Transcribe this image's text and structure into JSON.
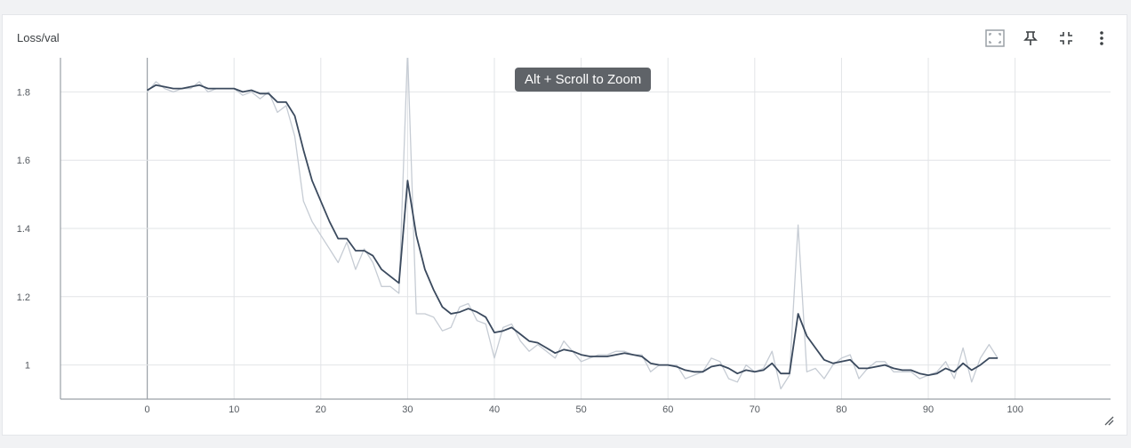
{
  "card": {
    "title": "Loss/val"
  },
  "tooltip": {
    "text": "Alt + Scroll to Zoom"
  },
  "toolbar": {
    "buttons": [
      {
        "name": "fit-domain-button",
        "icon": "fit-to-data-icon"
      },
      {
        "name": "pin-button",
        "icon": "pin-icon"
      },
      {
        "name": "collapse-button",
        "icon": "collapse-icon"
      },
      {
        "name": "more-menu-button",
        "icon": "more-vert-icon"
      }
    ]
  },
  "chart_data": {
    "type": "line",
    "title": "",
    "xlabel": "",
    "ylabel": "",
    "xlim": [
      -10,
      111
    ],
    "ylim": [
      0.9,
      1.9
    ],
    "xticks": [
      0,
      10,
      20,
      30,
      40,
      50,
      60,
      70,
      80,
      90,
      100
    ],
    "xtick_labels": [
      "0",
      "10",
      "20",
      "30",
      "40",
      "50",
      "60",
      "70",
      "80",
      "90",
      "100"
    ],
    "yticks": [
      1,
      1.2,
      1.4,
      1.6,
      1.8
    ],
    "ytick_labels": [
      "1",
      "1.2",
      "1.4",
      "1.6",
      "1.8"
    ],
    "grid": true,
    "colors": {
      "raw": "#c6ccd4",
      "smoothed": "#3b4a5e",
      "grid": "#e2e4e7",
      "axis": "#9aa0a6"
    },
    "x": [
      0,
      1,
      2,
      3,
      4,
      5,
      6,
      7,
      8,
      9,
      10,
      11,
      12,
      13,
      14,
      15,
      16,
      17,
      18,
      19,
      20,
      21,
      22,
      23,
      24,
      25,
      26,
      27,
      28,
      29,
      30,
      31,
      32,
      33,
      34,
      35,
      36,
      37,
      38,
      39,
      40,
      41,
      42,
      43,
      44,
      45,
      46,
      47,
      48,
      49,
      50,
      51,
      52,
      53,
      54,
      55,
      56,
      57,
      58,
      59,
      60,
      61,
      62,
      63,
      64,
      65,
      66,
      67,
      68,
      69,
      70,
      71,
      72,
      73,
      74,
      75,
      76,
      77,
      78,
      79,
      80,
      81,
      82,
      83,
      84,
      85,
      86,
      87,
      88,
      89,
      90,
      91,
      92,
      93,
      94,
      95,
      96,
      97,
      98
    ],
    "series": [
      {
        "role": "raw",
        "values": [
          1.8,
          1.83,
          1.81,
          1.8,
          1.81,
          1.81,
          1.83,
          1.8,
          1.81,
          1.81,
          1.81,
          1.79,
          1.8,
          1.78,
          1.8,
          1.74,
          1.76,
          1.67,
          1.48,
          1.42,
          1.38,
          1.34,
          1.3,
          1.36,
          1.28,
          1.34,
          1.3,
          1.23,
          1.23,
          1.21,
          1.92,
          1.15,
          1.15,
          1.14,
          1.1,
          1.11,
          1.17,
          1.18,
          1.13,
          1.12,
          1.02,
          1.11,
          1.12,
          1.07,
          1.04,
          1.06,
          1.04,
          1.02,
          1.07,
          1.04,
          1.01,
          1.02,
          1.03,
          1.03,
          1.04,
          1.04,
          1.03,
          1.03,
          0.98,
          1.0,
          1.0,
          1.0,
          0.96,
          0.97,
          0.98,
          1.02,
          1.01,
          0.96,
          0.95,
          1.0,
          0.98,
          0.99,
          1.04,
          0.93,
          0.97,
          1.41,
          0.98,
          0.99,
          0.96,
          1.0,
          1.02,
          1.03,
          0.96,
          0.99,
          1.01,
          1.01,
          0.98,
          0.98,
          0.98,
          0.96,
          0.97,
          0.98,
          1.01,
          0.96,
          1.05,
          0.95,
          1.02,
          1.06,
          1.02
        ]
      },
      {
        "role": "smoothed",
        "values": [
          1.805,
          1.82,
          1.815,
          1.81,
          1.81,
          1.815,
          1.82,
          1.81,
          1.81,
          1.81,
          1.81,
          1.8,
          1.805,
          1.795,
          1.795,
          1.77,
          1.77,
          1.73,
          1.63,
          1.54,
          1.48,
          1.42,
          1.37,
          1.37,
          1.335,
          1.335,
          1.32,
          1.28,
          1.26,
          1.24,
          1.54,
          1.38,
          1.28,
          1.22,
          1.17,
          1.15,
          1.155,
          1.165,
          1.155,
          1.14,
          1.095,
          1.1,
          1.11,
          1.09,
          1.07,
          1.065,
          1.05,
          1.035,
          1.045,
          1.04,
          1.03,
          1.025,
          1.025,
          1.025,
          1.03,
          1.035,
          1.03,
          1.025,
          1.005,
          1.0,
          1.0,
          0.995,
          0.985,
          0.98,
          0.98,
          0.995,
          1.0,
          0.99,
          0.975,
          0.985,
          0.98,
          0.985,
          1.005,
          0.975,
          0.975,
          1.15,
          1.085,
          1.05,
          1.015,
          1.005,
          1.01,
          1.015,
          0.99,
          0.99,
          0.995,
          1.0,
          0.99,
          0.985,
          0.985,
          0.975,
          0.97,
          0.975,
          0.99,
          0.98,
          1.005,
          0.985,
          1.0,
          1.02,
          1.02
        ]
      }
    ]
  }
}
